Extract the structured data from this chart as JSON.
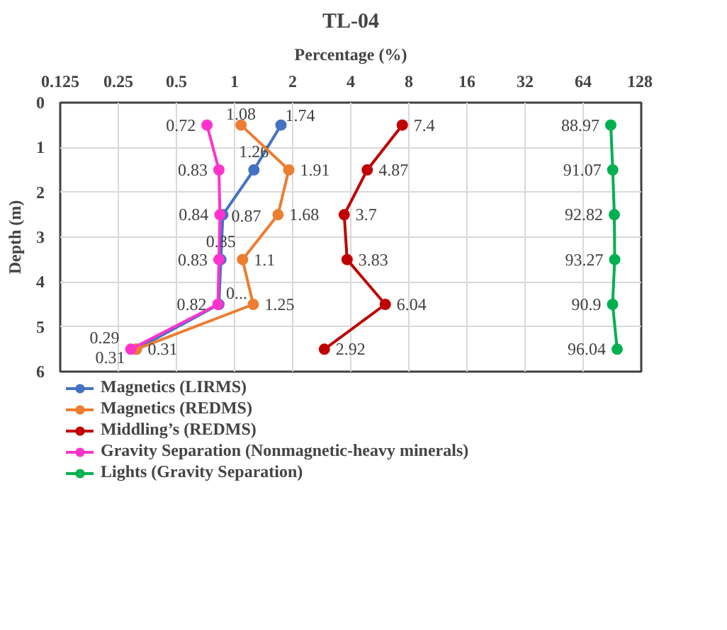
{
  "chart_data": {
    "type": "line",
    "orientation": "horizontal",
    "title": "TL-04",
    "xlabel": "Percentage (%)",
    "ylabel": "Depth (m)",
    "log": "x",
    "xlim": [
      0.125,
      128
    ],
    "xticks": [
      0.125,
      0.25,
      0.5,
      1,
      2,
      4,
      8,
      16,
      32,
      64,
      128
    ],
    "ylim": [
      6,
      0
    ],
    "yticks": [
      0,
      1,
      2,
      3,
      4,
      5,
      6
    ],
    "grid": true,
    "legend": "bottom",
    "marker": "circle",
    "line_style": "solid",
    "series": [
      {
        "name": "Magnetics (LIRMS)",
        "color": "#4472c4",
        "values": [
          1.74,
          1.26,
          0.87,
          0.85,
          0.83,
          0.31
        ],
        "x": [
          0.5,
          1.5,
          2.5,
          3.5,
          4.5,
          5.5
        ],
        "value_labels": [
          "1.74",
          "1.26",
          "0.87",
          "0.85",
          "0...",
          "0.31"
        ]
      },
      {
        "name": "Magnetics (REDMS)",
        "color": "#ed7d31",
        "values": [
          1.08,
          1.91,
          1.68,
          1.1,
          1.25,
          0.31
        ],
        "x": [
          0.5,
          1.5,
          2.5,
          3.5,
          4.5,
          5.5
        ],
        "value_labels": [
          "1.08",
          "1.91",
          "1.68",
          "1.1",
          "1.25",
          "0.31"
        ]
      },
      {
        "name": "Middling’s (REDMS)",
        "color": "#c00000",
        "values": [
          7.4,
          4.87,
          3.7,
          3.83,
          6.04,
          2.92
        ],
        "x": [
          0.5,
          1.5,
          2.5,
          3.5,
          4.5,
          5.5
        ],
        "value_labels": [
          "7.4",
          "4.87",
          "3.7",
          "3.83",
          "6.04",
          "2.92"
        ]
      },
      {
        "name": "Gravity Separation (Nonmagnetic-heavy minerals)",
        "color": "#ff33cc",
        "values": [
          0.72,
          0.83,
          0.84,
          0.83,
          0.82,
          0.29
        ],
        "x": [
          0.5,
          1.5,
          2.5,
          3.5,
          4.5,
          5.5
        ],
        "value_labels": [
          "0.72",
          "0.83",
          "0.84",
          "0.83",
          "0.82",
          "0.29"
        ]
      },
      {
        "name": "Lights (Gravity Separation)",
        "color": "#00b050",
        "values": [
          88.97,
          91.07,
          92.82,
          93.27,
          90.9,
          96.04
        ],
        "x": [
          0.5,
          1.5,
          2.5,
          3.5,
          4.5,
          5.5
        ],
        "value_labels": [
          "88.97",
          "91.07",
          "92.82",
          "93.27",
          "90.9",
          "96.04"
        ]
      }
    ]
  }
}
